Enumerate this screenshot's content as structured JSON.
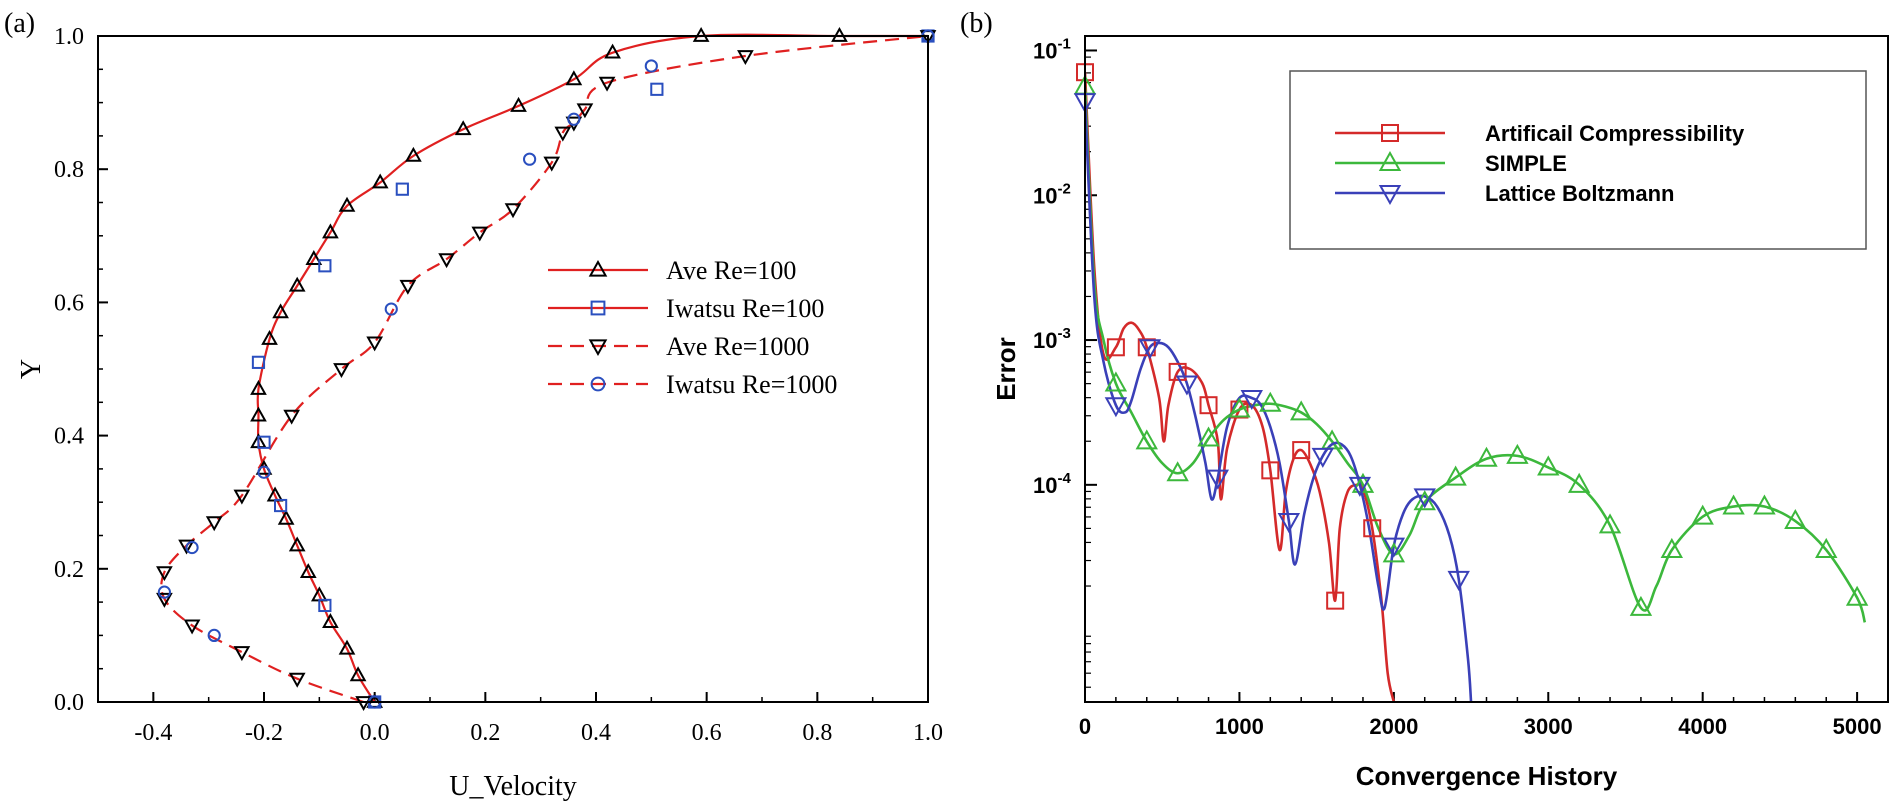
{
  "panel_a_label": "(a)",
  "panel_b_label": "(b)",
  "chart_data": [
    {
      "type": "line",
      "panel": "(a)",
      "xlabel": "U_Velocity",
      "ylabel": "Y",
      "xlim": [
        -0.5,
        1.0
      ],
      "ylim": [
        0.0,
        1.0
      ],
      "xticks": [
        "-0.4",
        "-0.2",
        "0.0",
        "0.2",
        "0.4",
        "0.6",
        "0.8",
        "1.0"
      ],
      "yticks": [
        "0.0",
        "0.2",
        "0.4",
        "0.6",
        "0.8",
        "1.0"
      ],
      "legend_position": "center-right",
      "series": [
        {
          "name": "Ave Re=100",
          "color": "#e02020",
          "dash": "solid",
          "marker": "triangle-up",
          "marker_color": "#000000",
          "x": [
            0.0,
            -0.03,
            -0.05,
            -0.08,
            -0.1,
            -0.12,
            -0.14,
            -0.16,
            -0.18,
            -0.2,
            -0.21,
            -0.21,
            -0.21,
            -0.19,
            -0.17,
            -0.14,
            -0.11,
            -0.08,
            -0.05,
            0.01,
            0.07,
            0.16,
            0.26,
            0.36,
            0.43,
            0.59,
            0.84,
            1.0
          ],
          "y": [
            0.0,
            0.04,
            0.08,
            0.12,
            0.16,
            0.195,
            0.235,
            0.275,
            0.31,
            0.35,
            0.39,
            0.43,
            0.47,
            0.545,
            0.585,
            0.625,
            0.665,
            0.705,
            0.745,
            0.78,
            0.82,
            0.86,
            0.895,
            0.935,
            0.975,
            1.0,
            1.0,
            1.0
          ]
        },
        {
          "name": "Iwatsu Re=100",
          "color": "#e02020",
          "dash": "solid",
          "marker": "square",
          "marker_color": "#2a4fbf",
          "x": [
            0.0,
            -0.09,
            -0.17,
            -0.2,
            -0.21,
            -0.09,
            0.05,
            0.51,
            1.0
          ],
          "y": [
            0.0,
            0.145,
            0.295,
            0.39,
            0.51,
            0.655,
            0.77,
            0.92,
            1.0
          ]
        },
        {
          "name": "Ave Re=1000",
          "color": "#e02020",
          "dash": "dashed",
          "marker": "triangle-down",
          "marker_color": "#000000",
          "x": [
            -0.02,
            -0.14,
            -0.24,
            -0.33,
            -0.38,
            -0.38,
            -0.34,
            -0.29,
            -0.24,
            -0.15,
            -0.06,
            0.0,
            0.06,
            0.13,
            0.19,
            0.25,
            0.32,
            0.34,
            0.36,
            0.38,
            0.42,
            0.67,
            1.0
          ],
          "y": [
            0.0,
            0.035,
            0.075,
            0.115,
            0.155,
            0.195,
            0.235,
            0.27,
            0.31,
            0.43,
            0.5,
            0.54,
            0.625,
            0.665,
            0.705,
            0.74,
            0.81,
            0.855,
            0.87,
            0.89,
            0.93,
            0.97,
            1.0
          ]
        },
        {
          "name": "Iwatsu Re=1000",
          "color": "#e02020",
          "dash": "dashed",
          "marker": "circle",
          "marker_color": "#2a4fbf",
          "x": [
            0.0,
            -0.29,
            -0.38,
            -0.33,
            -0.2,
            0.03,
            0.28,
            0.36,
            0.5,
            1.0
          ],
          "y": [
            0.0,
            0.1,
            0.165,
            0.232,
            0.345,
            0.59,
            0.815,
            0.875,
            0.955,
            1.0
          ]
        }
      ]
    },
    {
      "type": "line",
      "panel": "(b)",
      "xlabel": "Convergence History",
      "ylabel": "Error",
      "yscale": "log",
      "xlim": [
        0,
        5200
      ],
      "ylim_log10": [
        -5.5,
        -0.9
      ],
      "xticks": [
        "0",
        "1000",
        "2000",
        "3000",
        "4000",
        "5000"
      ],
      "yticks": [
        "10-4",
        "10-3",
        "10-2",
        "10-1"
      ],
      "legend_position": "top-right",
      "series": [
        {
          "name": "Artificail Compressibility",
          "color": "#d42a2a",
          "marker": "square",
          "x": [
            0,
            60,
            120,
            200,
            250,
            300,
            350,
            400,
            480,
            510,
            540,
            600,
            680,
            760,
            800,
            860,
            880,
            920,
            1000,
            1080,
            1150,
            1200,
            1260,
            1300,
            1350,
            1400,
            1460,
            1520,
            1580,
            1620,
            1650,
            1700,
            1760,
            1800,
            1860,
            1920,
            1960,
            2000
          ],
          "y_log10": [
            -1.15,
            -2.5,
            -3.1,
            -3.05,
            -2.92,
            -2.88,
            -2.93,
            -3.05,
            -3.4,
            -3.7,
            -3.45,
            -3.22,
            -3.2,
            -3.3,
            -3.45,
            -3.7,
            -4.1,
            -3.75,
            -3.48,
            -3.45,
            -3.6,
            -3.9,
            -4.45,
            -4.05,
            -3.82,
            -3.76,
            -3.86,
            -4.05,
            -4.4,
            -4.8,
            -4.3,
            -4.05,
            -4.0,
            -4.03,
            -4.3,
            -4.8,
            -5.3,
            -5.5
          ]
        },
        {
          "name": "SIMPLE",
          "color": "#3cb83c",
          "marker": "triangle-up",
          "x": [
            0,
            60,
            120,
            200,
            300,
            400,
            500,
            600,
            700,
            800,
            900,
            1000,
            1100,
            1200,
            1300,
            1400,
            1500,
            1600,
            1700,
            1800,
            1900,
            2000,
            2100,
            2200,
            2400,
            2600,
            2800,
            3000,
            3200,
            3400,
            3600,
            3700,
            3800,
            4000,
            4200,
            4400,
            4600,
            4800,
            5000,
            5050
          ],
          "y_log10": [
            -1.25,
            -2.6,
            -3.0,
            -3.3,
            -3.5,
            -3.7,
            -3.85,
            -3.92,
            -3.85,
            -3.68,
            -3.55,
            -3.48,
            -3.45,
            -3.44,
            -3.46,
            -3.5,
            -3.58,
            -3.7,
            -3.85,
            -4.0,
            -4.3,
            -4.48,
            -4.35,
            -4.12,
            -3.95,
            -3.82,
            -3.8,
            -3.88,
            -4.0,
            -4.28,
            -4.85,
            -4.7,
            -4.45,
            -4.22,
            -4.15,
            -4.15,
            -4.25,
            -4.45,
            -4.78,
            -4.95
          ]
        },
        {
          "name": "Lattice Boltzmann",
          "color": "#3a40b8",
          "marker": "triangle-down",
          "x": [
            0,
            60,
            120,
            200,
            260,
            300,
            360,
            420,
            480,
            540,
            600,
            660,
            720,
            780,
            820,
            860,
            920,
            1000,
            1080,
            1140,
            1200,
            1260,
            1320,
            1360,
            1420,
            1480,
            1540,
            1600,
            1660,
            1720,
            1780,
            1840,
            1900,
            1940,
            2000,
            2060,
            2120,
            2200,
            2280,
            2360,
            2420,
            2480,
            2500
          ],
          "y_log10": [
            -1.35,
            -2.7,
            -3.15,
            -3.45,
            -3.5,
            -3.42,
            -3.2,
            -3.05,
            -3.02,
            -3.05,
            -3.15,
            -3.3,
            -3.55,
            -3.85,
            -4.1,
            -3.95,
            -3.6,
            -3.4,
            -3.4,
            -3.45,
            -3.6,
            -3.85,
            -4.25,
            -4.55,
            -4.2,
            -3.95,
            -3.8,
            -3.72,
            -3.72,
            -3.8,
            -4.0,
            -4.3,
            -4.7,
            -4.85,
            -4.42,
            -4.2,
            -4.1,
            -4.08,
            -4.15,
            -4.35,
            -4.65,
            -5.2,
            -5.5
          ]
        }
      ]
    }
  ]
}
